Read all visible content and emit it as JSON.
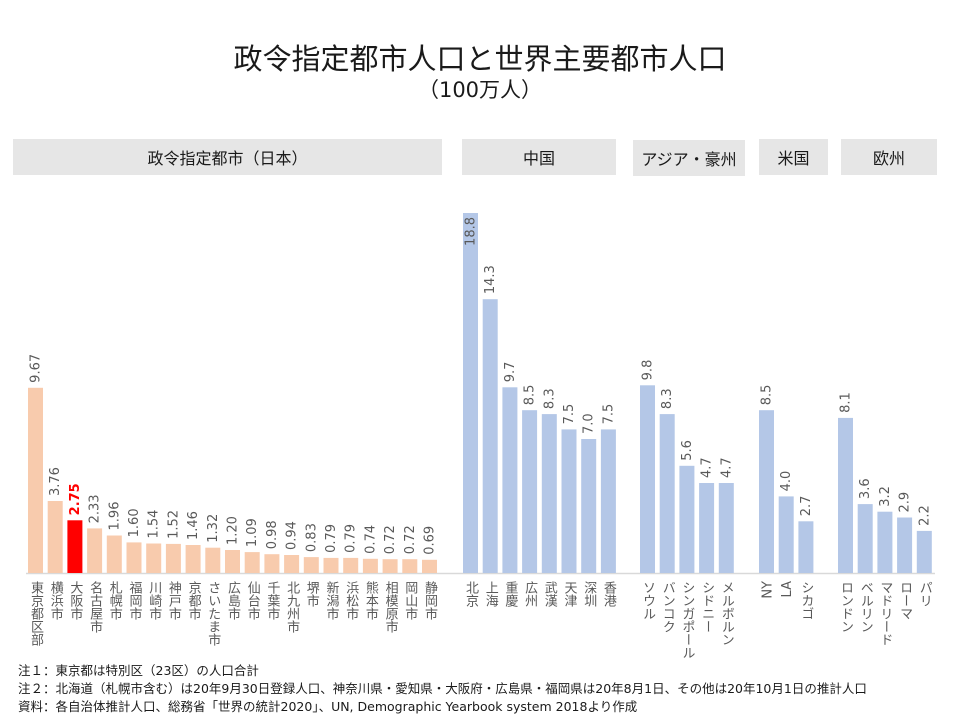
{
  "title": "政令指定都市人口と世界主要都市人口",
  "subtitle": "（100万人）",
  "sections": [
    {
      "label": "政令指定都市（日本）"
    },
    {
      "label": "中国"
    },
    {
      "label": "アジア・豪州"
    },
    {
      "label": "米国"
    },
    {
      "label": "欧州"
    }
  ],
  "colors": {
    "japan": "#f8cbad",
    "highlight": "#ff0000",
    "world": "#b4c7e7",
    "axis": "#d9d9d9",
    "label": "#595959",
    "section_bg": "#e6e6e6"
  },
  "notes": [
    "注１：東京都は特別区（23区）の人口合計",
    "注２：北海道（札幌市含む）は20年9月30日登録人口、神奈川県・愛知県・大阪府・広島県・福岡県は20年8月1日、その他は20年10月1日の推計人口",
    "資料：各自治体推計人口、総務省「世界の統計2020」、UN, Demographic Yearbook system 2018より作成"
  ],
  "chart_data": {
    "type": "bar",
    "title": "政令指定都市人口と世界主要都市人口",
    "subtitle": "（100万人）",
    "xlabel": "",
    "ylabel": "",
    "unit": "100万人",
    "ylim": [
      0,
      18.8
    ],
    "grid": false,
    "legend": "none",
    "groups": [
      {
        "name": "政令指定都市（日本）",
        "series_color": "japan",
        "categories": [
          "東京都区部",
          "横浜市",
          "大阪市",
          "名古屋市",
          "札幌市",
          "福岡市",
          "川崎市",
          "神戸市",
          "京都市",
          "さいたま市",
          "広島市",
          "仙台市",
          "千葉市",
          "北九州市",
          "堺市",
          "新潟市",
          "浜松市",
          "熊本市",
          "相模原市",
          "岡山市",
          "静岡市"
        ],
        "values": [
          9.67,
          3.76,
          2.75,
          2.33,
          1.96,
          1.6,
          1.54,
          1.52,
          1.46,
          1.32,
          1.2,
          1.09,
          0.98,
          0.94,
          0.83,
          0.79,
          0.79,
          0.74,
          0.72,
          0.72,
          0.69
        ],
        "labels": [
          "9.67",
          "3.76",
          "2.75",
          "2.33",
          "1.96",
          "1.60",
          "1.54",
          "1.52",
          "1.46",
          "1.32",
          "1.20",
          "1.09",
          "0.98",
          "0.94",
          "0.83",
          "0.79",
          "0.79",
          "0.74",
          "0.72",
          "0.72",
          "0.69"
        ],
        "highlight_index": 2
      },
      {
        "name": "中国",
        "series_color": "world",
        "categories": [
          "北京",
          "上海",
          "重慶",
          "広州",
          "武漢",
          "天津",
          "深圳",
          "香港"
        ],
        "values": [
          18.8,
          14.3,
          9.7,
          8.5,
          8.3,
          7.5,
          7.0,
          7.5
        ],
        "labels": [
          "18.8",
          "14.3",
          "9.7",
          "8.5",
          "8.3",
          "7.5",
          "7.0",
          "7.5"
        ]
      },
      {
        "name": "アジア・豪州",
        "series_color": "world",
        "categories": [
          "ソウル",
          "バンコク",
          "シンガポール",
          "シドニー",
          "メルボルン"
        ],
        "values": [
          9.8,
          8.3,
          5.6,
          4.7,
          4.7
        ],
        "labels": [
          "9.8",
          "8.3",
          "5.6",
          "4.7",
          "4.7"
        ]
      },
      {
        "name": "米国",
        "series_color": "world",
        "categories": [
          "NY",
          "LA",
          "シカゴ"
        ],
        "values": [
          8.5,
          4.0,
          2.7
        ],
        "labels": [
          "8.5",
          "4.0",
          "2.7"
        ]
      },
      {
        "name": "欧州",
        "series_color": "world",
        "categories": [
          "ロンドン",
          "ベルリン",
          "マドリード",
          "ローマ",
          "パリ"
        ],
        "values": [
          8.1,
          3.6,
          3.2,
          2.9,
          2.2
        ],
        "labels": [
          "8.1",
          "3.6",
          "3.2",
          "2.9",
          "2.2"
        ]
      }
    ]
  }
}
